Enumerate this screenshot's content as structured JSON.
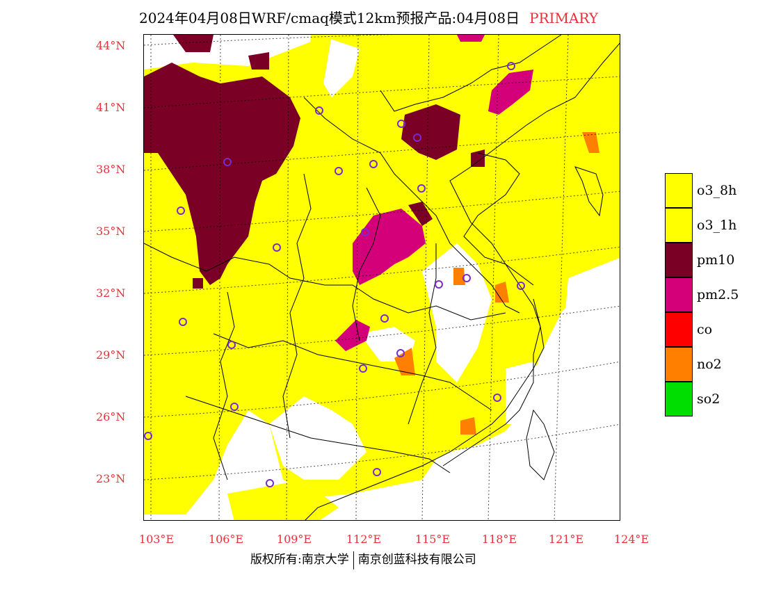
{
  "title": {
    "main": "2024年04月08日WRF/cmaq模式12km预报产品:04月08日",
    "tag": "PRIMARY"
  },
  "axes": {
    "lat_labels": [
      "44°N",
      "41°N",
      "38°N",
      "35°N",
      "32°N",
      "29°N",
      "26°N",
      "23°N"
    ],
    "lon_labels": [
      "103°E",
      "106°E",
      "109°E",
      "112°E",
      "115°E",
      "118°E",
      "121°E",
      "124°E"
    ]
  },
  "legend": [
    {
      "label": "o3_8h",
      "color": "#ffff00"
    },
    {
      "label": "o3_1h",
      "color": "#ffff00"
    },
    {
      "label": "pm10",
      "color": "#7a0026"
    },
    {
      "label": "pm2.5",
      "color": "#d4007a"
    },
    {
      "label": "co",
      "color": "#ff0000"
    },
    {
      "label": "no2",
      "color": "#ff7f00"
    },
    {
      "label": "so2",
      "color": "#00dd00"
    }
  ],
  "credit": {
    "left": "版权所有:南京大学",
    "right": "南京创蓝科技有限公司"
  },
  "colors": {
    "label_red": "#e8303a",
    "yellow": "#ffff00",
    "pm10": "#7a0026",
    "pm25": "#d4007a",
    "no2": "#ff7f00"
  }
}
